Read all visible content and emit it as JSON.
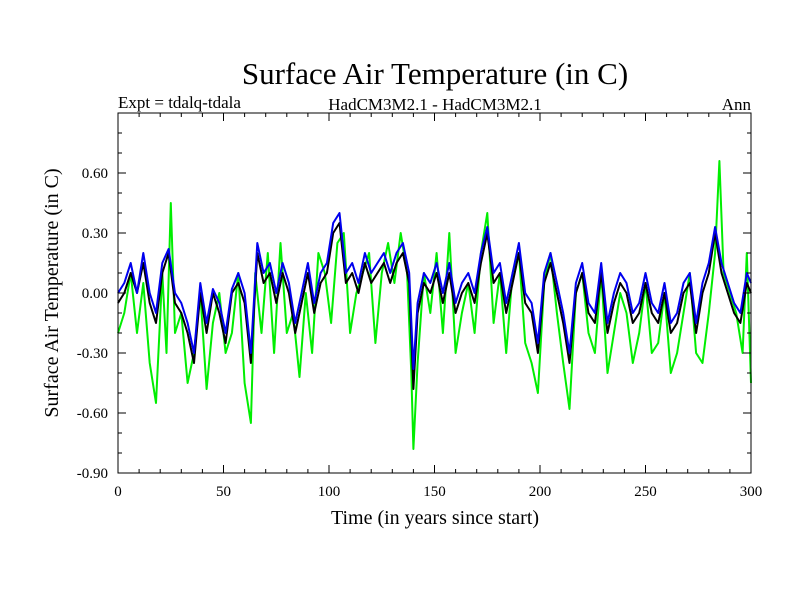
{
  "chart_data": {
    "type": "line",
    "title": "Surface Air Temperature (in C)",
    "subtitle_left": "Expt = tdalq-tdala",
    "subtitle_center": "HadCM3M2.1 - HadCM3M2.1",
    "subtitle_right": "Ann",
    "xlabel": "Time (in years since start)",
    "ylabel": "Surface Air Temperature (in C)",
    "xlim": [
      0,
      300
    ],
    "ylim": [
      -0.9,
      0.9
    ],
    "xticks": [
      0,
      50,
      100,
      150,
      200,
      250,
      300
    ],
    "xtick_labels": [
      "0",
      "50",
      "100",
      "150",
      "200",
      "250",
      "300"
    ],
    "yticks": [
      -0.9,
      -0.6,
      -0.3,
      0.0,
      0.3,
      0.6
    ],
    "ytick_labels": [
      "-0.90",
      "-0.60",
      "-0.30",
      "0.00",
      "0.30",
      "0.60"
    ],
    "grid": false,
    "series": [
      {
        "name": "green",
        "color": "#00ee00",
        "x": [
          0,
          3,
          6,
          9,
          12,
          15,
          18,
          21,
          23,
          25,
          27,
          30,
          33,
          36,
          39,
          42,
          45,
          48,
          51,
          54,
          57,
          60,
          63,
          65,
          68,
          71,
          74,
          77,
          80,
          83,
          86,
          89,
          92,
          95,
          98,
          101,
          104,
          107,
          110,
          113,
          116,
          119,
          122,
          125,
          128,
          131,
          134,
          137,
          139,
          140,
          142,
          145,
          148,
          151,
          154,
          157,
          160,
          163,
          166,
          169,
          172,
          175,
          178,
          181,
          184,
          187,
          190,
          193,
          196,
          199,
          202,
          205,
          208,
          211,
          214,
          217,
          220,
          223,
          226,
          229,
          232,
          235,
          238,
          241,
          244,
          247,
          250,
          253,
          256,
          259,
          262,
          265,
          268,
          271,
          274,
          277,
          280,
          283,
          285,
          287,
          290,
          293,
          296,
          298,
          300
        ],
        "values": [
          -0.2,
          -0.1,
          0.1,
          -0.2,
          0.05,
          -0.35,
          -0.55,
          0.1,
          -0.3,
          0.45,
          -0.2,
          -0.1,
          -0.45,
          -0.3,
          0.0,
          -0.48,
          -0.15,
          0.0,
          -0.3,
          -0.2,
          0.1,
          -0.45,
          -0.65,
          0.1,
          -0.2,
          0.2,
          -0.3,
          0.25,
          -0.2,
          -0.1,
          -0.42,
          0.0,
          -0.3,
          0.2,
          0.1,
          -0.15,
          0.25,
          0.3,
          -0.2,
          0.0,
          0.1,
          0.2,
          -0.25,
          0.1,
          0.25,
          0.05,
          0.3,
          0.1,
          -0.4,
          -0.78,
          -0.35,
          0.1,
          -0.1,
          0.2,
          -0.2,
          0.3,
          -0.3,
          -0.1,
          0.05,
          -0.2,
          0.2,
          0.4,
          -0.15,
          0.1,
          -0.3,
          0.1,
          0.2,
          -0.25,
          -0.35,
          -0.5,
          0.05,
          0.2,
          -0.1,
          -0.35,
          -0.58,
          0.0,
          0.1,
          -0.2,
          -0.3,
          0.1,
          -0.4,
          -0.2,
          0.0,
          -0.1,
          -0.35,
          -0.2,
          0.05,
          -0.3,
          -0.25,
          0.0,
          -0.4,
          -0.3,
          -0.1,
          0.1,
          -0.3,
          -0.35,
          -0.1,
          0.2,
          0.66,
          0.1,
          0.0,
          -0.1,
          -0.3,
          0.2,
          -0.45
        ]
      },
      {
        "name": "black",
        "color": "#000000",
        "x": [
          0,
          3,
          6,
          9,
          12,
          15,
          18,
          21,
          24,
          27,
          30,
          33,
          36,
          39,
          42,
          45,
          48,
          51,
          54,
          57,
          60,
          63,
          66,
          69,
          72,
          75,
          78,
          81,
          84,
          87,
          90,
          93,
          96,
          99,
          102,
          105,
          108,
          111,
          114,
          117,
          120,
          123,
          126,
          129,
          132,
          135,
          138,
          140,
          142,
          145,
          148,
          151,
          154,
          157,
          160,
          163,
          166,
          169,
          172,
          175,
          178,
          181,
          184,
          187,
          190,
          193,
          196,
          199,
          202,
          205,
          208,
          211,
          214,
          217,
          220,
          223,
          226,
          229,
          232,
          235,
          238,
          241,
          244,
          247,
          250,
          253,
          256,
          259,
          262,
          265,
          268,
          271,
          274,
          277,
          280,
          283,
          286,
          289,
          292,
          295,
          298,
          300
        ],
        "values": [
          -0.05,
          0.0,
          0.1,
          0.0,
          0.15,
          -0.05,
          -0.15,
          0.1,
          0.2,
          -0.05,
          -0.1,
          -0.2,
          -0.35,
          0.0,
          -0.2,
          0.0,
          -0.1,
          -0.25,
          0.0,
          0.05,
          -0.05,
          -0.35,
          0.2,
          0.05,
          0.1,
          -0.05,
          0.1,
          0.0,
          -0.2,
          -0.05,
          0.1,
          -0.1,
          0.05,
          0.1,
          0.3,
          0.35,
          0.05,
          0.1,
          0.0,
          0.15,
          0.05,
          0.1,
          0.15,
          0.05,
          0.15,
          0.2,
          0.05,
          -0.48,
          -0.1,
          0.05,
          0.0,
          0.1,
          -0.05,
          0.1,
          -0.1,
          0.0,
          0.05,
          -0.05,
          0.15,
          0.3,
          0.05,
          0.1,
          -0.1,
          0.05,
          0.2,
          -0.05,
          -0.1,
          -0.3,
          0.05,
          0.15,
          0.0,
          -0.15,
          -0.35,
          0.0,
          0.1,
          -0.1,
          -0.15,
          0.1,
          -0.2,
          -0.05,
          0.05,
          0.0,
          -0.15,
          -0.1,
          0.05,
          -0.1,
          -0.15,
          0.0,
          -0.2,
          -0.15,
          0.0,
          0.05,
          -0.2,
          0.0,
          0.1,
          0.3,
          0.1,
          0.0,
          -0.1,
          -0.15,
          0.05,
          0.0
        ]
      },
      {
        "name": "blue",
        "color": "#0000ee",
        "x": [
          0,
          3,
          6,
          9,
          12,
          15,
          18,
          21,
          24,
          27,
          30,
          33,
          36,
          39,
          42,
          45,
          48,
          51,
          54,
          57,
          60,
          63,
          66,
          69,
          72,
          75,
          78,
          81,
          84,
          87,
          90,
          93,
          96,
          99,
          102,
          105,
          108,
          111,
          114,
          117,
          120,
          123,
          126,
          129,
          132,
          135,
          138,
          140,
          142,
          145,
          148,
          151,
          154,
          157,
          160,
          163,
          166,
          169,
          172,
          175,
          178,
          181,
          184,
          187,
          190,
          193,
          196,
          199,
          202,
          205,
          208,
          211,
          214,
          217,
          220,
          223,
          226,
          229,
          232,
          235,
          238,
          241,
          244,
          247,
          250,
          253,
          256,
          259,
          262,
          265,
          268,
          271,
          274,
          277,
          280,
          283,
          286,
          289,
          292,
          295,
          298,
          300
        ],
        "values": [
          0.0,
          0.05,
          0.15,
          0.0,
          0.2,
          0.0,
          -0.1,
          0.15,
          0.22,
          0.0,
          -0.05,
          -0.15,
          -0.3,
          0.05,
          -0.15,
          0.02,
          -0.05,
          -0.2,
          0.02,
          0.1,
          0.0,
          -0.3,
          0.25,
          0.1,
          0.15,
          0.0,
          0.15,
          0.05,
          -0.15,
          0.0,
          0.15,
          -0.05,
          0.1,
          0.15,
          0.35,
          0.4,
          0.1,
          0.15,
          0.05,
          0.2,
          0.1,
          0.15,
          0.2,
          0.1,
          0.2,
          0.25,
          0.1,
          -0.38,
          -0.05,
          0.1,
          0.05,
          0.15,
          0.0,
          0.15,
          -0.05,
          0.05,
          0.1,
          0.0,
          0.2,
          0.33,
          0.1,
          0.15,
          -0.05,
          0.1,
          0.25,
          0.0,
          -0.05,
          -0.25,
          0.1,
          0.2,
          0.05,
          -0.1,
          -0.3,
          0.05,
          0.15,
          -0.05,
          -0.1,
          0.15,
          -0.15,
          0.0,
          0.1,
          0.05,
          -0.1,
          -0.05,
          0.1,
          -0.05,
          -0.1,
          0.05,
          -0.15,
          -0.1,
          0.05,
          0.1,
          -0.15,
          0.05,
          0.15,
          0.33,
          0.15,
          0.05,
          -0.05,
          -0.1,
          0.1,
          0.05
        ]
      }
    ]
  }
}
